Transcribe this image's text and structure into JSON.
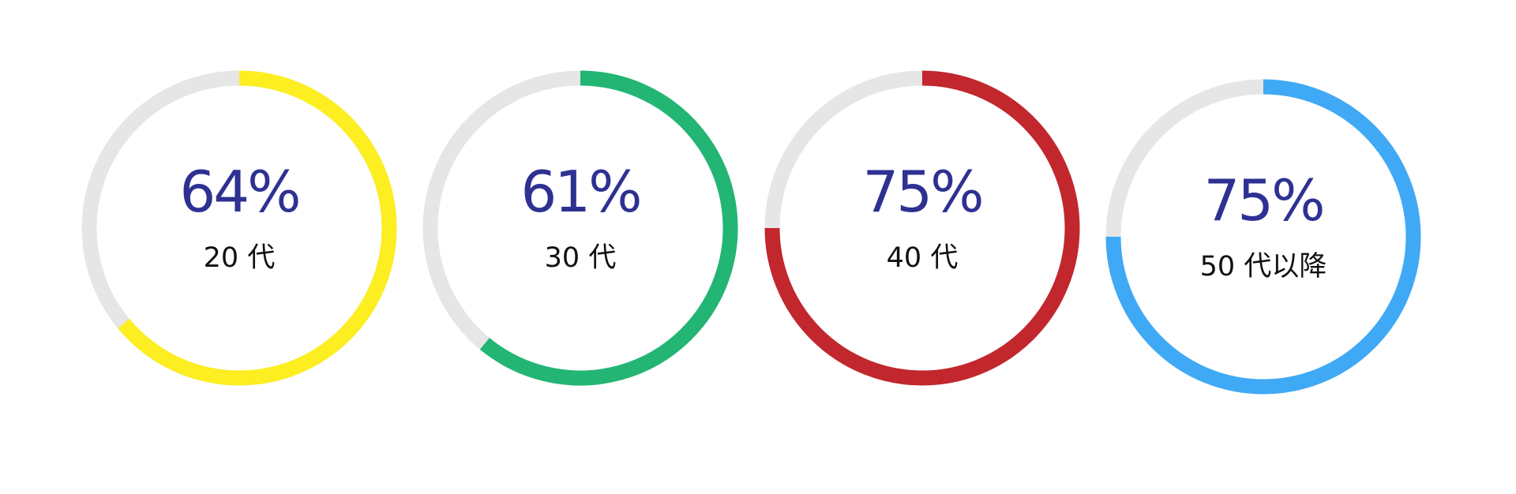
{
  "chart_data": {
    "type": "donut",
    "gauges": [
      {
        "label": "20 代",
        "value": 64,
        "value_text": "64%",
        "color": "#fcee21"
      },
      {
        "label": "30 代",
        "value": 61,
        "value_text": "61%",
        "color": "#22b573"
      },
      {
        "label": "40 代",
        "value": 75,
        "value_text": "75%",
        "color": "#c1272d"
      },
      {
        "label": "50 代以降",
        "value": 75,
        "value_text": "75%",
        "color": "#3fa9f5"
      }
    ],
    "track_color": "#e6e6e6",
    "value_text_color": "#2e3192"
  }
}
